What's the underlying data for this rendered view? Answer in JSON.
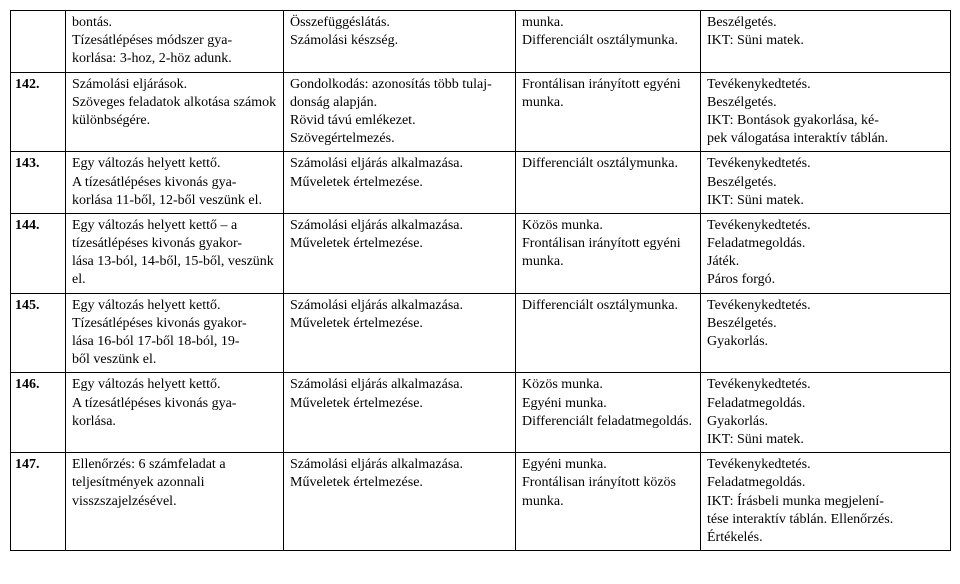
{
  "rows": [
    {
      "num": "",
      "c1": "bontás.\nTízesátlépéses módszer gya-\nkorlása: 3-hoz, 2-höz adunk.",
      "c2": "Összefüggéslátás.\nSzámolási készség.",
      "c3": "munka.\nDifferenciált osztálymunka.",
      "c4": "Beszélgetés.\nIKT: Süni matek."
    },
    {
      "num": "142.",
      "c1": "Számolási eljárások.\nSzöveges feladatok alkotása számok különbségére.",
      "c2": "Gondolkodás: azonosítás több tulaj-\ndonság alapján.\nRövid távú emlékezet.\nSzövegértelmezés.",
      "c3": "Frontálisan irányított egyéni munka.",
      "c4": "Tevékenykedtetés.\nBeszélgetés.\nIKT: Bontások gyakorlása, ké-\npek válogatása interaktív táblán."
    },
    {
      "num": "143.",
      "c1": "Egy változás helyett kettő.\nA tízesátlépéses kivonás gya-\nkorlása 11-ből, 12-ből veszünk el.",
      "c2": "Számolási eljárás alkalmazása.\nMűveletek értelmezése.",
      "c3": "Differenciált osztálymunka.",
      "c4": "Tevékenykedtetés.\nBeszélgetés.\nIKT: Süni matek."
    },
    {
      "num": "144.",
      "c1": "Egy változás helyett kettő – a tízesátlépéses kivonás gyakor-\nlása 13-ból, 14-ből, 15-ből, veszünk el.",
      "c2": "Számolási eljárás alkalmazása.\nMűveletek értelmezése.",
      "c3": "Közös munka.\nFrontálisan irányított egyéni munka.",
      "c4": "Tevékenykedtetés.\nFeladatmegoldás.\nJáték.\nPáros forgó."
    },
    {
      "num": "145.",
      "c1": "Egy változás helyett kettő.\nTízesátlépéses kivonás gyakor-\nlása 16-ból 17-ből 18-ból, 19-\nből veszünk el.",
      "c2": "Számolási eljárás alkalmazása.\nMűveletek értelmezése.",
      "c3": "Differenciált osztálymunka.",
      "c4": "Tevékenykedtetés.\nBeszélgetés.\nGyakorlás."
    },
    {
      "num": "146.",
      "c1": "Egy változás helyett kettő.\nA tízesátlépéses kivonás gya-\nkorlása.",
      "c2": "Számolási eljárás alkalmazása.\nMűveletek értelmezése.",
      "c3": "Közös munka.\nEgyéni munka.\nDifferenciált feladatmegoldás.",
      "c4": "Tevékenykedtetés.\nFeladatmegoldás.\nGyakorlás.\nIKT: Süni matek."
    },
    {
      "num": "147.",
      "c1": "Ellenőrzés: 6 számfeladat a teljesítmények azonnali visszszajelzésével.",
      "c2": "Számolási eljárás alkalmazása.\nMűveletek értelmezése.",
      "c3": "Egyéni munka.\nFrontálisan irányított közös munka.",
      "c4": "Tevékenykedtetés.\nFeladatmegoldás.\nIKT: Írásbeli munka megjelení-\ntése interaktív táblán. Ellenőrzés.\nÉrtékelés."
    }
  ],
  "groups": [
    [
      0
    ],
    [
      1
    ],
    [
      2,
      3
    ],
    [
      4,
      5
    ],
    [
      6
    ]
  ]
}
